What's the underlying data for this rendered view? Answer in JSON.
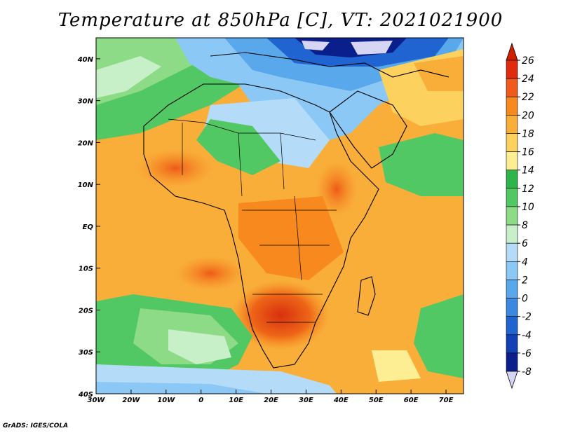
{
  "title": "Temperature at 850hPa [C], VT: 2021021900",
  "credit": "GrADS: IGES/COLA",
  "map": {
    "projection": "latlon",
    "lon_range": [
      -30,
      75
    ],
    "lat_range": [
      -40,
      45
    ],
    "x_tick_labels": [
      "30W",
      "20W",
      "10W",
      "0",
      "10E",
      "20E",
      "30E",
      "40E",
      "50E",
      "60E",
      "70E"
    ],
    "x_tick_values": [
      -30,
      -20,
      -10,
      0,
      10,
      20,
      30,
      40,
      50,
      60,
      70
    ],
    "y_tick_labels": [
      "40S",
      "30S",
      "20S",
      "10S",
      "EQ",
      "10N",
      "20N",
      "30N",
      "40N"
    ],
    "y_tick_values": [
      -40,
      -30,
      -20,
      -10,
      0,
      10,
      20,
      30,
      40
    ]
  },
  "colorbar": {
    "labels": [
      "26",
      "24",
      "22",
      "20",
      "18",
      "16",
      "14",
      "12",
      "10",
      "8",
      "6",
      "4",
      "2",
      "0",
      "-2",
      "-4",
      "-6",
      "-8"
    ],
    "colors": [
      "#e02b0e",
      "#f05a1a",
      "#f7891f",
      "#f9ae3a",
      "#fcd15e",
      "#fdee94",
      "#2db44a",
      "#52c864",
      "#8ddb86",
      "#c8f0c8",
      "#b4dcf8",
      "#8cc8f5",
      "#5aa8ec",
      "#3a88e0",
      "#1f64d0",
      "#1040b4",
      "#0a1e8c"
    ],
    "range": [
      -8,
      26
    ]
  }
}
